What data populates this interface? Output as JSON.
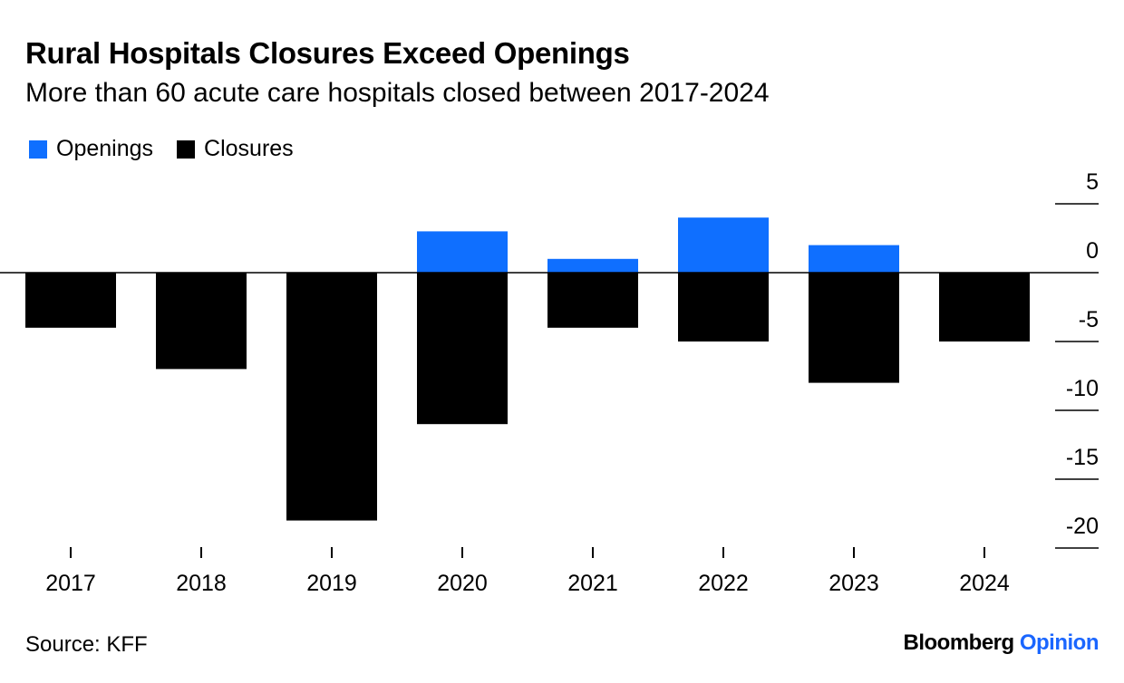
{
  "chart_data": {
    "type": "bar",
    "title": "Rural Hospitals Closures Exceed Openings",
    "subtitle": "More than 60 acute care hospitals closed between 2017-2024",
    "categories": [
      "2017",
      "2018",
      "2019",
      "2020",
      "2021",
      "2022",
      "2023",
      "2024"
    ],
    "series": [
      {
        "name": "Openings",
        "color": "#0f6fff",
        "values": [
          0,
          0,
          0,
          3,
          1,
          4,
          2,
          0
        ]
      },
      {
        "name": "Closures",
        "color": "#000000",
        "values": [
          -4,
          -7,
          -18,
          -11,
          -4,
          -5,
          -8,
          -5
        ]
      }
    ],
    "yticks": [
      5,
      0,
      -5,
      -10,
      -15,
      -20
    ],
    "ylim": [
      -20,
      5
    ],
    "axis_position": "right",
    "legend_position": "top-left",
    "source": "Source: KFF",
    "brand": {
      "name": "Bloomberg",
      "suffix": "Opinion",
      "suffix_color": "#1a66ff"
    }
  }
}
